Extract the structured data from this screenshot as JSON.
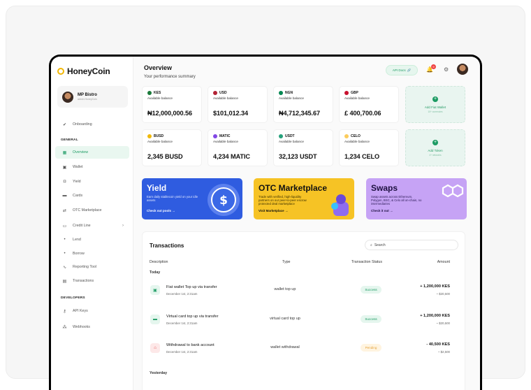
{
  "app": {
    "name": "HoneyCoin"
  },
  "profile": {
    "name": "MP Bistro",
    "subtitle": "admin HoneyCoin"
  },
  "sidebar": {
    "onboarding": "Onboarding",
    "general_heading": "GENERAL",
    "items": [
      {
        "label": "Overview",
        "icon": "grid-icon",
        "active": true
      },
      {
        "label": "Wallet",
        "icon": "wallet-icon"
      },
      {
        "label": "Yield",
        "icon": "jar-icon"
      },
      {
        "label": "Cards",
        "icon": "card-icon"
      },
      {
        "label": "OTC Marketplace",
        "icon": "swap-arrows-icon"
      },
      {
        "label": "Credit Line",
        "icon": "credit-icon"
      },
      {
        "label": "Lend",
        "icon": "dot-icon"
      },
      {
        "label": "Borrow",
        "icon": "dot-icon"
      },
      {
        "label": "Reporting Tool",
        "icon": "chart-icon"
      },
      {
        "label": "Transactions",
        "icon": "list-icon"
      }
    ],
    "developers_heading": "DEVELOPERS",
    "dev_items": [
      {
        "label": "API Keys",
        "icon": "key-icon"
      },
      {
        "label": "Webhooks",
        "icon": "webhook-icon"
      }
    ]
  },
  "header": {
    "title": "Overview",
    "subtitle": "Your performance summary",
    "api_docs": "API Docs",
    "notifications_count": "9"
  },
  "wallets": [
    {
      "code": "KES",
      "label": "Available balance",
      "amount": "₦12,000,000.56",
      "color": "#1a7a3a"
    },
    {
      "code": "USD",
      "label": "Available balance",
      "amount": "$101,012.34",
      "color": "#b22234"
    },
    {
      "code": "NGN",
      "label": "Available balance",
      "amount": "₦4,712,345.67",
      "color": "#008751"
    },
    {
      "code": "GBP",
      "label": "Available balance",
      "amount": "£ 400,700.06",
      "color": "#c8102e"
    },
    {
      "code": "BUSD",
      "label": "Available balance",
      "amount": "2,345 BUSD",
      "color": "#f0b90b"
    },
    {
      "code": "MATIC",
      "label": "Available balance",
      "amount": "4,234 MATIC",
      "color": "#8247e5"
    },
    {
      "code": "USDT",
      "label": "Available balance",
      "amount": "32,123 USDT",
      "color": "#26a17b"
    },
    {
      "code": "CELO",
      "label": "Available balance",
      "amount": "1,234 CELO",
      "color": "#fbcc5c"
    }
  ],
  "add_fiat": {
    "label": "Add Fiat Wallet",
    "sub": "10+ currencies"
  },
  "add_token": {
    "label": "Add Token",
    "sub": "4+ networks"
  },
  "promos": {
    "yield": {
      "title": "Yield",
      "desc": "Earn daily stablecoin yield on your idle assets",
      "link": "Check out pools",
      "color": "#2f5ce0"
    },
    "otc": {
      "title": "OTC Marketplace",
      "desc": "Trade with verified, high-liquidity partners on our peer-to-peer escrow protected deal marketplace",
      "link": "Visit Marketplace",
      "color": "#f6c325"
    },
    "swaps": {
      "title": "Swaps",
      "desc": "Swap assets across Ethereum, Polygon, BSC, & Celo all on-chain, no intermediaries",
      "link": "Check it out",
      "color": "#c6a3f5"
    }
  },
  "transactions": {
    "title": "Transactions",
    "search_placeholder": "Search",
    "columns": [
      "Description",
      "Type",
      "Transaction Status",
      "Amount"
    ],
    "group_today": "Today",
    "group_yesterday": "Yesterday",
    "rows": [
      {
        "title": "Fiat wallet Top up via transfer",
        "date": "December 1st, 2:31am",
        "type": "wallet top up",
        "status": "Success",
        "amount": "+ 1,200,000 KES",
        "usd": "~ $20,500"
      },
      {
        "title": "Virtual card top up via transfer",
        "date": "December 1st, 2:31am",
        "type": "virtual card top up",
        "status": "Success",
        "amount": "+ 1,200,000 KES",
        "usd": "~ $20,500"
      },
      {
        "title": "Withdrawal to bank account",
        "date": "December 1st, 2:31am",
        "type": "wallet withdrawal",
        "status": "Pending",
        "amount": "- 40,500 KES",
        "usd": "~ $2,500"
      }
    ]
  }
}
